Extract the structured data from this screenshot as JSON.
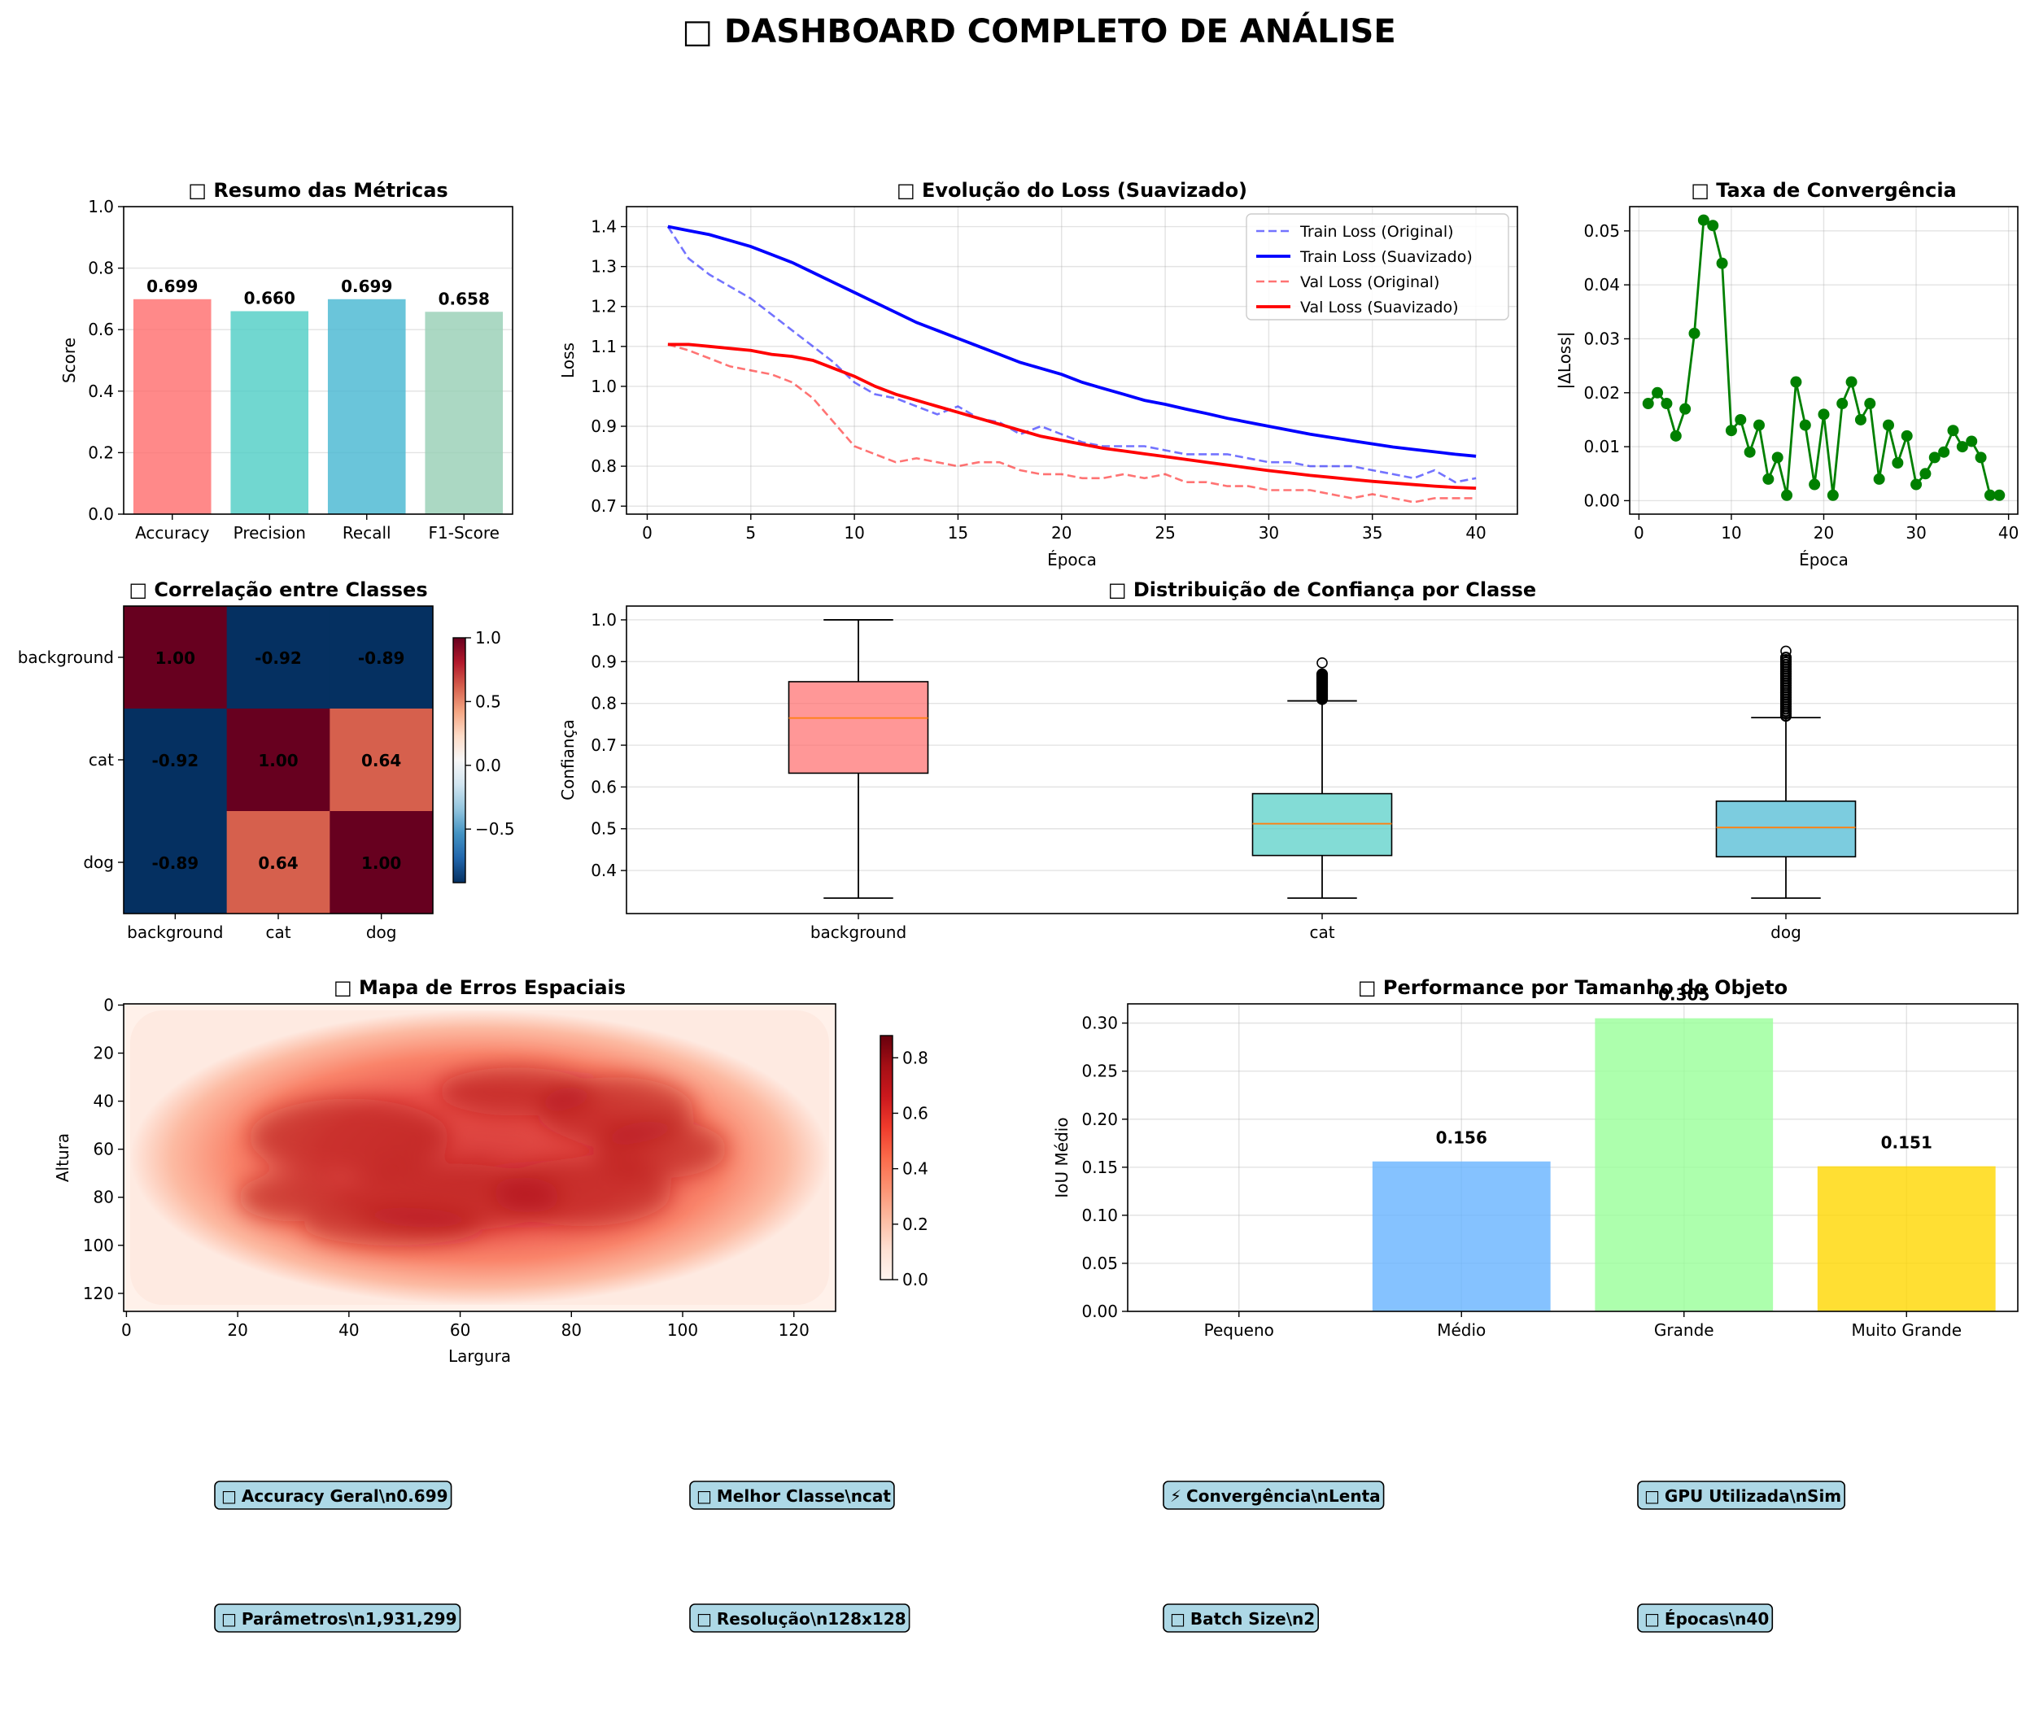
{
  "page": {
    "title": "□ DASHBOARD COMPLETO DE ANÁLISE",
    "title_glyph": "□",
    "title_text": "DASHBOARD COMPLETO DE ANÁLISE"
  },
  "chart_data": [
    {
      "id": "metrics",
      "type": "bar",
      "title": "□ Resumo das Métricas",
      "xlabel": "",
      "ylabel": "Score",
      "ylim": [
        0,
        1
      ],
      "yticks": [
        0.0,
        0.2,
        0.4,
        0.6,
        0.8,
        1.0
      ],
      "tick_format": 1,
      "categories": [
        "Accuracy",
        "Precision",
        "Recall",
        "F1-Score"
      ],
      "values": [
        0.699,
        0.66,
        0.699,
        0.658
      ],
      "labels": [
        "0.699",
        "0.660",
        "0.699",
        "0.658"
      ],
      "colors": [
        "#FF6B6B",
        "#4ECDC4",
        "#45B7D1",
        "#96CEB4"
      ],
      "grid": true
    },
    {
      "id": "loss",
      "type": "line",
      "title": "□ Evolução do Loss (Suavizado)",
      "xlabel": "Época",
      "ylabel": "Loss",
      "xlim": [
        -1,
        42
      ],
      "ylim": [
        0.68,
        1.45
      ],
      "xticks": [
        0,
        5,
        10,
        15,
        20,
        25,
        30,
        35,
        40
      ],
      "yticks": [
        0.7,
        0.8,
        0.9,
        1.0,
        1.1,
        1.2,
        1.3,
        1.4
      ],
      "tick_format": 1,
      "legend": "top-right",
      "grid": true,
      "x": [
        1,
        2,
        3,
        4,
        5,
        6,
        7,
        8,
        9,
        10,
        11,
        12,
        13,
        14,
        15,
        16,
        17,
        18,
        19,
        20,
        21,
        22,
        23,
        24,
        25,
        26,
        27,
        28,
        29,
        30,
        31,
        32,
        33,
        34,
        35,
        36,
        37,
        38,
        39,
        40
      ],
      "series": [
        {
          "name": "Train Loss (Original)",
          "color": "#0000FF",
          "style": "dashed",
          "alpha": 0.55,
          "values": [
            1.4,
            1.32,
            1.28,
            1.25,
            1.22,
            1.18,
            1.14,
            1.1,
            1.06,
            1.01,
            0.98,
            0.97,
            0.95,
            0.93,
            0.95,
            0.92,
            0.91,
            0.88,
            0.9,
            0.88,
            0.86,
            0.85,
            0.85,
            0.85,
            0.84,
            0.83,
            0.83,
            0.83,
            0.82,
            0.81,
            0.81,
            0.8,
            0.8,
            0.8,
            0.79,
            0.78,
            0.77,
            0.79,
            0.76,
            0.77
          ]
        },
        {
          "name": "Train Loss (Suavizado)",
          "color": "#0000FF",
          "style": "solid",
          "alpha": 1,
          "values": [
            1.4,
            1.39,
            1.38,
            1.365,
            1.35,
            1.33,
            1.31,
            1.285,
            1.26,
            1.235,
            1.21,
            1.185,
            1.16,
            1.14,
            1.12,
            1.1,
            1.08,
            1.06,
            1.045,
            1.03,
            1.01,
            0.995,
            0.98,
            0.965,
            0.955,
            0.943,
            0.932,
            0.92,
            0.91,
            0.9,
            0.89,
            0.88,
            0.872,
            0.864,
            0.856,
            0.848,
            0.842,
            0.836,
            0.83,
            0.825
          ]
        },
        {
          "name": "Val Loss (Original)",
          "color": "#FF0000",
          "style": "dashed",
          "alpha": 0.55,
          "values": [
            1.105,
            1.09,
            1.07,
            1.05,
            1.04,
            1.03,
            1.01,
            0.97,
            0.91,
            0.85,
            0.83,
            0.81,
            0.82,
            0.81,
            0.8,
            0.81,
            0.81,
            0.79,
            0.78,
            0.78,
            0.77,
            0.77,
            0.78,
            0.77,
            0.78,
            0.76,
            0.76,
            0.75,
            0.75,
            0.74,
            0.74,
            0.74,
            0.73,
            0.72,
            0.73,
            0.72,
            0.71,
            0.72,
            0.72,
            0.72
          ]
        },
        {
          "name": "Val Loss (Suavizado)",
          "color": "#FF0000",
          "style": "solid",
          "alpha": 1,
          "values": [
            1.105,
            1.105,
            1.1,
            1.095,
            1.09,
            1.08,
            1.075,
            1.065,
            1.045,
            1.025,
            1.0,
            0.98,
            0.965,
            0.95,
            0.935,
            0.92,
            0.905,
            0.89,
            0.875,
            0.865,
            0.855,
            0.845,
            0.838,
            0.831,
            0.824,
            0.817,
            0.81,
            0.803,
            0.796,
            0.789,
            0.783,
            0.777,
            0.772,
            0.767,
            0.762,
            0.758,
            0.754,
            0.75,
            0.747,
            0.745
          ]
        }
      ]
    },
    {
      "id": "convergence",
      "type": "line",
      "title": "□ Taxa de Convergência",
      "xlabel": "Época",
      "ylabel": "|ΔLoss|",
      "xlim": [
        -1,
        41
      ],
      "ylim": [
        -0.0025,
        0.0545
      ],
      "xticks": [
        0,
        10,
        20,
        30,
        40
      ],
      "yticks": [
        0.0,
        0.01,
        0.02,
        0.03,
        0.04,
        0.05
      ],
      "tick_format": 2,
      "grid": true,
      "x": [
        1,
        2,
        3,
        4,
        5,
        6,
        7,
        8,
        9,
        10,
        11,
        12,
        13,
        14,
        15,
        16,
        17,
        18,
        19,
        20,
        21,
        22,
        23,
        24,
        25,
        26,
        27,
        28,
        29,
        30,
        31,
        32,
        33,
        34,
        35,
        36,
        37,
        38,
        39
      ],
      "series": [
        {
          "name": "",
          "color": "#008000",
          "style": "solid",
          "markers": true,
          "values": [
            0.018,
            0.02,
            0.018,
            0.012,
            0.017,
            0.031,
            0.052,
            0.051,
            0.044,
            0.013,
            0.015,
            0.009,
            0.014,
            0.004,
            0.008,
            0.001,
            0.022,
            0.014,
            0.003,
            0.016,
            0.001,
            0.018,
            0.022,
            0.015,
            0.018,
            0.004,
            0.014,
            0.007,
            0.012,
            0.003,
            0.005,
            0.008,
            0.009,
            0.013,
            0.01,
            0.011,
            0.008,
            0.001,
            0.001
          ]
        }
      ]
    },
    {
      "id": "correlation",
      "type": "heatmap",
      "title": "□ Correlação entre Classes",
      "rows": [
        "background",
        "cat",
        "dog"
      ],
      "cols": [
        "background",
        "cat",
        "dog"
      ],
      "values": [
        [
          1.0,
          -0.92,
          -0.89
        ],
        [
          -0.92,
          1.0,
          0.64
        ],
        [
          -0.89,
          0.64,
          1.0
        ]
      ],
      "cell_labels": [
        [
          "1.00",
          "-0.92",
          "-0.89"
        ],
        [
          "-0.92",
          "1.00",
          "0.64"
        ],
        [
          "-0.89",
          "0.64",
          "1.00"
        ]
      ],
      "cell_colors": [
        [
          "#67001F",
          "#053061",
          "#053061"
        ],
        [
          "#053061",
          "#67001F",
          "#D6604D"
        ],
        [
          "#053061",
          "#D6604D",
          "#67001F"
        ]
      ],
      "colormap": "RdBu_r",
      "colorbar_range": [
        -0.92,
        1.0
      ],
      "colorbar_ticks": [
        {
          "value": 1.0,
          "label": "1.0"
        },
        {
          "value": 0.5,
          "label": "0.5"
        },
        {
          "value": 0.0,
          "label": "0.0"
        },
        {
          "value": -0.5,
          "label": "−0.5"
        }
      ]
    },
    {
      "id": "confidence",
      "type": "box",
      "title": "□ Distribuição de Confiança por Classe",
      "xlabel": "",
      "ylabel": "Confiança",
      "ylim": [
        0.297,
        1.033
      ],
      "yticks": [
        0.4,
        0.5,
        0.6,
        0.7,
        0.8,
        0.9,
        1.0
      ],
      "tick_format": 1,
      "grid": true,
      "categories": [
        "background",
        "cat",
        "dog"
      ],
      "boxes": [
        {
          "whislo": 0.334,
          "q1": 0.633,
          "med": 0.765,
          "q3": 0.852,
          "whishi": 1.0,
          "color": "#FF6B6B",
          "fliers_lo": null,
          "fliers_hi": null,
          "flier_max": null
        },
        {
          "whislo": 0.334,
          "q1": 0.436,
          "med": 0.512,
          "q3": 0.584,
          "whishi": 0.806,
          "color": "#4ECDC4",
          "fliers_lo": 0.81,
          "fliers_hi": 0.87,
          "flier_max": 0.897
        },
        {
          "whislo": 0.334,
          "q1": 0.433,
          "med": 0.503,
          "q3": 0.566,
          "whishi": 0.766,
          "color": "#45B7D1",
          "fliers_lo": 0.77,
          "fliers_hi": 0.91,
          "flier_max": 0.925
        }
      ]
    },
    {
      "id": "spatial",
      "type": "heatmap",
      "title": "□ Mapa de Erros Espaciais",
      "xlabel": "Largura",
      "ylabel": "Altura",
      "xticks": [
        0,
        20,
        40,
        60,
        80,
        100,
        120
      ],
      "yticks": [
        0,
        20,
        40,
        60,
        80,
        100,
        120
      ],
      "xlim": [
        -0.5,
        127.5
      ],
      "ylim": [
        -0.5,
        127.5
      ],
      "colormap": "Reds",
      "colorbar_range": [
        0,
        0.88
      ],
      "colorbar_ticks": [
        {
          "value": 0.0,
          "label": "0.0"
        },
        {
          "value": 0.2,
          "label": "0.2"
        },
        {
          "value": 0.4,
          "label": "0.4"
        },
        {
          "value": 0.6,
          "label": "0.6"
        },
        {
          "value": 0.8,
          "label": "0.8"
        }
      ]
    },
    {
      "id": "size",
      "type": "bar",
      "title": "□ Performance por Tamanho do Objeto",
      "xlabel": "",
      "ylabel": "IoU Médio",
      "ylim": [
        0,
        0.32
      ],
      "yticks": [
        0.0,
        0.05,
        0.1,
        0.15,
        0.2,
        0.25,
        0.3
      ],
      "tick_format": 2,
      "categories": [
        "Pequeno",
        "Médio",
        "Grande",
        "Muito Grande"
      ],
      "values": [
        0.0,
        0.156,
        0.305,
        0.151
      ],
      "labels": [
        "",
        "0.156",
        "0.305",
        "0.151"
      ],
      "colors": [
        "#FF9999",
        "#66B3FF",
        "#99FF99",
        "#FFD700"
      ],
      "grid": true
    }
  ],
  "info_boxes": [
    {
      "icon": "□",
      "text": "Accuracy Geral\\n0.699"
    },
    {
      "icon": "□",
      "text": "Melhor Classe\\ncat"
    },
    {
      "icon": "⚡",
      "text": "Convergência\\nLenta"
    },
    {
      "icon": "□",
      "text": "GPU Utilizada\\nSim"
    },
    {
      "icon": "□",
      "text": "Parâmetros\\n1,931,299"
    },
    {
      "icon": "□",
      "text": "Resolução\\n128x128"
    },
    {
      "icon": "□",
      "text": "Batch Size\\n2"
    },
    {
      "icon": "□",
      "text": "Épocas\\n40"
    }
  ]
}
